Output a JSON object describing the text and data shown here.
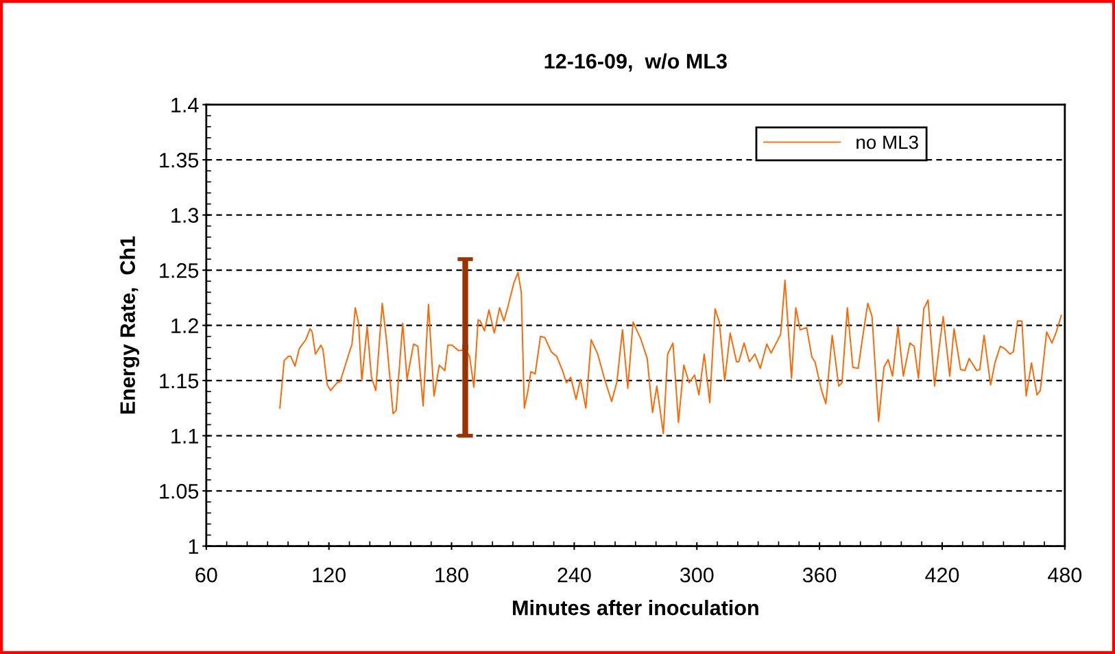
{
  "chart_data": {
    "type": "line",
    "title": "12-16-09,  w/o ML3",
    "xlabel": "Minutes after inoculation",
    "ylabel": "Energy Rate,  Ch1",
    "xlim": [
      60,
      480
    ],
    "xticks": [
      60,
      120,
      180,
      240,
      300,
      360,
      420,
      480
    ],
    "ylim": [
      1,
      1.4
    ],
    "yticks": [
      1,
      1.05,
      1.1,
      1.15,
      1.2,
      1.25,
      1.3,
      1.35,
      1.4
    ],
    "grid": "y",
    "legend": "top right",
    "marker": "none",
    "line_style": "solid",
    "series": [
      {
        "name": "no ML3",
        "color": "#ff6600",
        "x": [
          96.0,
          98.1,
          100.2,
          101.3,
          103.4,
          105.5,
          108.7,
          110.8,
          111.8,
          113.4,
          116.1,
          117.1,
          119.2,
          120.8,
          124.0,
          125.5,
          129.2,
          131.3,
          132.9,
          134.5,
          136.1,
          138.7,
          140.8,
          142.9,
          146.1,
          148.2,
          151.4,
          152.9,
          156.1,
          158.2,
          161.4,
          163.5,
          166.1,
          168.7,
          171.4,
          174.0,
          176.7,
          178.2,
          180.3,
          183.5,
          186.7,
          188.8,
          190.9,
          193.0,
          194.0,
          196.1,
          198.3,
          200.9,
          203.5,
          205.6,
          207.7,
          210.4,
          212.5,
          214.1,
          215.6,
          217.2,
          218.8,
          220.9,
          223.5,
          225.6,
          228.8,
          231.4,
          234.1,
          236.2,
          238.3,
          240.9,
          243.0,
          245.7,
          248.3,
          251.5,
          254.6,
          258.3,
          260.9,
          263.6,
          266.2,
          268.8,
          272.5,
          275.7,
          278.3,
          280.4,
          283.6,
          285.7,
          288.3,
          291.0,
          293.6,
          296.2,
          298.9,
          301.0,
          303.6,
          306.3,
          308.9,
          311.0,
          313.6,
          316.3,
          319.4,
          320.5,
          323.1,
          325.7,
          328.4,
          331.0,
          334.2,
          336.3,
          339.4,
          341.0,
          343.1,
          346.3,
          348.4,
          350.5,
          353.7,
          356.3,
          357.8,
          361.0,
          363.1,
          366.2,
          369.4,
          371.0,
          373.6,
          376.3,
          378.9,
          381.0,
          383.6,
          385.7,
          388.9,
          391.5,
          393.6,
          395.7,
          398.4,
          401.0,
          404.2,
          406.3,
          408.4,
          411.0,
          413.1,
          416.3,
          418.4,
          420.5,
          423.7,
          425.8,
          429.0,
          431.1,
          433.2,
          436.9,
          438.4,
          440.5,
          443.7,
          445.8,
          448.4,
          450.5,
          453.2,
          454.8,
          456.9,
          459.0,
          461.1,
          463.7,
          466.4,
          468.0,
          471.1,
          473.7,
          475.8,
          478.3
        ],
        "values": [
          1.125,
          1.168,
          1.172,
          1.172,
          1.163,
          1.179,
          1.187,
          1.197,
          1.194,
          1.174,
          1.182,
          1.178,
          1.146,
          1.141,
          1.148,
          1.149,
          1.171,
          1.183,
          1.216,
          1.202,
          1.15,
          1.199,
          1.153,
          1.141,
          1.22,
          1.186,
          1.12,
          1.123,
          1.202,
          1.151,
          1.183,
          1.181,
          1.127,
          1.219,
          1.136,
          1.164,
          1.159,
          1.182,
          1.182,
          1.177,
          1.178,
          1.172,
          1.144,
          1.205,
          1.204,
          1.195,
          1.214,
          1.193,
          1.216,
          1.204,
          1.218,
          1.238,
          1.248,
          1.23,
          1.125,
          1.139,
          1.158,
          1.156,
          1.19,
          1.189,
          1.176,
          1.172,
          1.16,
          1.148,
          1.153,
          1.133,
          1.151,
          1.125,
          1.187,
          1.174,
          1.153,
          1.131,
          1.149,
          1.196,
          1.143,
          1.203,
          1.188,
          1.17,
          1.121,
          1.145,
          1.102,
          1.174,
          1.184,
          1.112,
          1.164,
          1.148,
          1.155,
          1.137,
          1.174,
          1.13,
          1.215,
          1.203,
          1.15,
          1.193,
          1.167,
          1.167,
          1.184,
          1.167,
          1.174,
          1.161,
          1.183,
          1.175,
          1.186,
          1.192,
          1.241,
          1.152,
          1.216,
          1.196,
          1.198,
          1.171,
          1.167,
          1.141,
          1.129,
          1.191,
          1.145,
          1.148,
          1.216,
          1.162,
          1.161,
          1.188,
          1.22,
          1.208,
          1.113,
          1.162,
          1.169,
          1.154,
          1.199,
          1.154,
          1.184,
          1.181,
          1.152,
          1.215,
          1.223,
          1.145,
          1.178,
          1.208,
          1.154,
          1.197,
          1.16,
          1.159,
          1.17,
          1.159,
          1.16,
          1.191,
          1.146,
          1.166,
          1.181,
          1.179,
          1.174,
          1.176,
          1.204,
          1.204,
          1.136,
          1.166,
          1.137,
          1.141,
          1.194,
          1.184,
          1.194,
          1.209
        ]
      },
      {
        "type": "scatter",
        "marker": "square",
        "color": "#993300",
        "x": [
          186.7
        ],
        "values": [
          1.18
        ],
        "errors": [
          [
            1.1,
            1.26
          ]
        ]
      }
    ]
  }
}
